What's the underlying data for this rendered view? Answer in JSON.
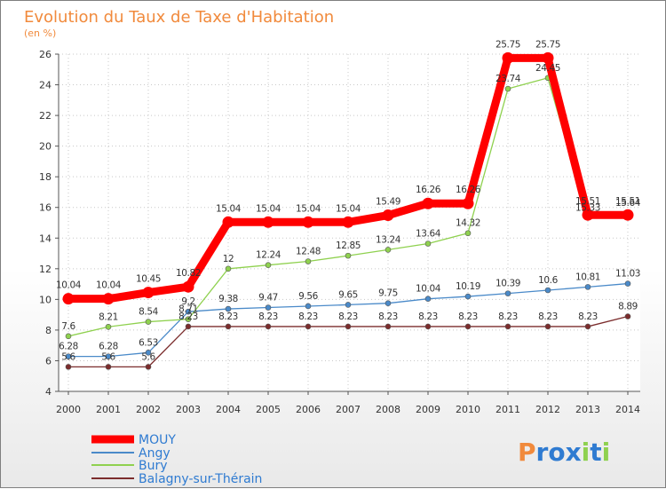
{
  "chart_data": {
    "type": "line",
    "title": "Evolution du Taux de Taxe d'Habitation",
    "subtitle": "(en %)",
    "categories": [
      "2000",
      "2001",
      "2002",
      "2003",
      "2004",
      "2005",
      "2006",
      "2007",
      "2008",
      "2009",
      "2010",
      "2011",
      "2012",
      "2013",
      "2014"
    ],
    "ylim": [
      4,
      26
    ],
    "yticks": [
      4,
      6,
      8,
      10,
      12,
      14,
      16,
      18,
      20,
      22,
      24,
      26
    ],
    "grid": true,
    "legend_position": "bottom-left",
    "series": [
      {
        "name": "MOUY",
        "color": "#ff0000",
        "values": [
          10.04,
          10.04,
          10.45,
          10.82,
          15.04,
          15.04,
          15.04,
          15.04,
          15.49,
          16.26,
          16.26,
          25.75,
          25.75,
          15.51,
          15.51
        ],
        "labels": [
          "10.04",
          "10.04",
          "10.45",
          "10.82",
          "15.04",
          "15.04",
          "15.04",
          "15.04",
          "15.49",
          "16.26",
          "16.26",
          "25.75",
          "25.75",
          "15.51",
          "15.51"
        ]
      },
      {
        "name": "Angy",
        "color": "#4a8ac9",
        "values": [
          6.28,
          6.28,
          6.53,
          9.2,
          9.38,
          9.47,
          9.56,
          9.65,
          9.75,
          10.04,
          10.19,
          10.39,
          10.6,
          10.81,
          11.03
        ],
        "labels": [
          "6.28",
          "6.28",
          "6.53",
          "9.2",
          "9.38",
          "9.47",
          "9.56",
          "9.65",
          "9.75",
          "10.04",
          "10.19",
          "10.39",
          "10.6",
          "10.81",
          "11.03"
        ]
      },
      {
        "name": "Bury",
        "color": "#8fd14f",
        "values": [
          7.6,
          8.21,
          8.54,
          8.71,
          12,
          12.24,
          12.48,
          12.85,
          13.24,
          13.64,
          14.32,
          23.74,
          24.45,
          15.33,
          15.64
        ],
        "labels": [
          "7.6",
          "8.21",
          "8.54",
          "8.71",
          "12",
          "12.24",
          "12.48",
          "12.85",
          "13.24",
          "13.64",
          "14.32",
          "23.74",
          "24.45",
          "15.33",
          "15.64"
        ]
      },
      {
        "name": "Balagny-sur-Thérain",
        "color": "#7b2c2c",
        "values": [
          5.6,
          5.6,
          5.6,
          8.23,
          8.23,
          8.23,
          8.23,
          8.23,
          8.23,
          8.23,
          8.23,
          8.23,
          8.23,
          8.23,
          8.89
        ],
        "labels": [
          "5.6",
          "5.6",
          "5.6",
          "8.23",
          "8.23",
          "8.23",
          "8.23",
          "8.23",
          "8.23",
          "8.23",
          "8.23",
          "8.23",
          "8.23",
          "8.23",
          "8.89"
        ]
      }
    ]
  },
  "logo": {
    "text": "Proxiti",
    "colors": [
      "#f18a3c",
      "#2f7bd1",
      "#8fd14f"
    ]
  }
}
